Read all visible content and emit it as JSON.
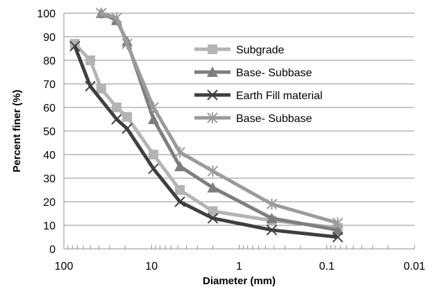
{
  "chart_data": {
    "type": "line",
    "title": "",
    "xlabel": "Diameter (mm)",
    "ylabel": "Percent finer (%)",
    "x_scale": "log",
    "x_reversed": true,
    "xlim": [
      100,
      0.01
    ],
    "ylim": [
      0,
      100
    ],
    "x_ticks": [
      100,
      10,
      1,
      0.1,
      0.01
    ],
    "x_tick_labels": [
      "100",
      "10",
      "1",
      "0.1",
      "0.01"
    ],
    "y_ticks": [
      0,
      10,
      20,
      30,
      40,
      50,
      60,
      70,
      80,
      90,
      100
    ],
    "y_tick_labels": [
      "0",
      "10",
      "20",
      "30",
      "40",
      "50",
      "60",
      "70",
      "80",
      "90",
      "100"
    ],
    "grid": "horizontal",
    "legend_position": "upper-right",
    "series": [
      {
        "name": "Subgrade",
        "marker": "square",
        "color": "#b4b4b4",
        "x": [
          75,
          50,
          37.5,
          25,
          19,
          9.5,
          4.75,
          2,
          0.425,
          0.075
        ],
        "y": [
          87,
          80,
          68,
          60,
          56,
          40,
          25,
          16,
          12,
          9
        ]
      },
      {
        "name": "Base- Subbase",
        "marker": "triangle",
        "color": "#7e7e7e",
        "x": [
          37.5,
          25,
          19,
          9.5,
          4.75,
          2,
          0.425,
          0.075
        ],
        "y": [
          100,
          97,
          88,
          55,
          35,
          26,
          13,
          8
        ]
      },
      {
        "name": "Earth Fill  material",
        "marker": "x",
        "color": "#3f3f3f",
        "x": [
          75,
          50,
          25,
          19,
          9.5,
          4.75,
          2,
          0.425,
          0.075
        ],
        "y": [
          86,
          69,
          55,
          51,
          34,
          20,
          13,
          8,
          5
        ]
      },
      {
        "name": "Base- Subbase",
        "marker": "asterisk",
        "color": "#9b9b9b",
        "x": [
          37.5,
          25,
          19,
          9.5,
          4.75,
          2,
          0.425,
          0.075
        ],
        "y": [
          100,
          98,
          87,
          60,
          41,
          33,
          19,
          11
        ]
      }
    ]
  }
}
